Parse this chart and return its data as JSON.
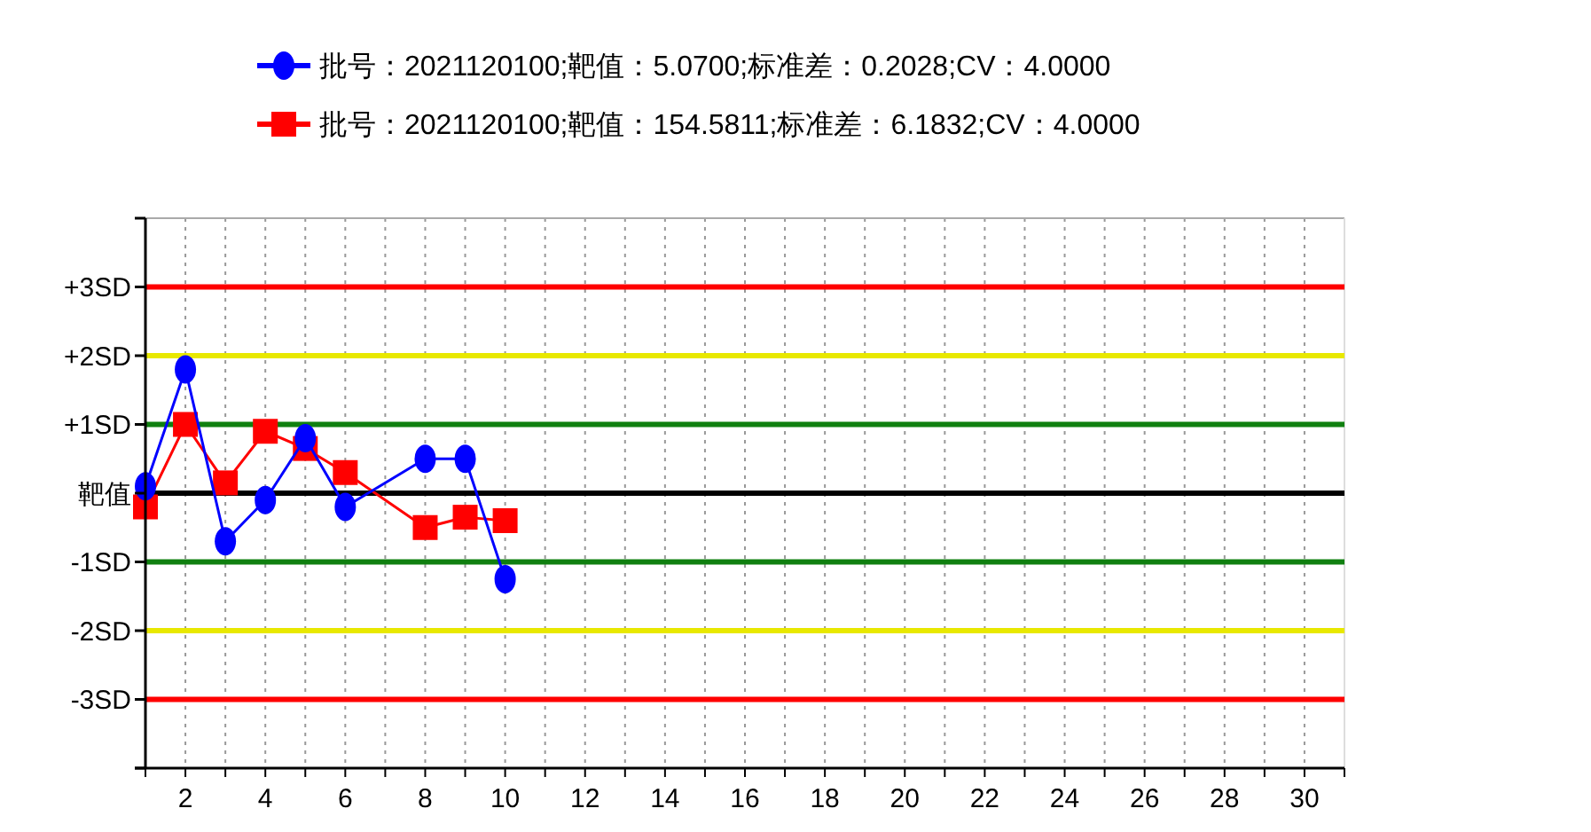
{
  "chart_data": {
    "type": "line",
    "legend": "top",
    "grid": "x",
    "xlim": [
      1,
      31
    ],
    "ylim": [
      -4,
      4
    ],
    "xticks": [
      {
        "value": 1,
        "label": null
      },
      2,
      {
        "value": 3,
        "label": null
      },
      4,
      {
        "value": 5,
        "label": null
      },
      6,
      {
        "value": 7,
        "label": null
      },
      8,
      {
        "value": 9,
        "label": null
      },
      10,
      {
        "value": 11,
        "label": null
      },
      12,
      {
        "value": 13,
        "label": null
      },
      14,
      {
        "value": 15,
        "label": null
      },
      16,
      {
        "value": 17,
        "label": null
      },
      18,
      {
        "value": 19,
        "label": null
      },
      20,
      {
        "value": 21,
        "label": null
      },
      22,
      {
        "value": 23,
        "label": null
      },
      24,
      {
        "value": 25,
        "label": null
      },
      26,
      {
        "value": 27,
        "label": null
      },
      28,
      {
        "value": 29,
        "label": null
      },
      30,
      {
        "value": 31,
        "label": null
      }
    ],
    "yticks": [
      {
        "value": 4,
        "label": null
      },
      {
        "value": 3,
        "label": "+3SD"
      },
      {
        "value": 2,
        "label": "+2SD"
      },
      {
        "value": 1,
        "label": "+1SD"
      },
      {
        "value": 0,
        "label": "靶值"
      },
      {
        "value": -1,
        "label": "-1SD"
      },
      {
        "value": -2,
        "label": "-2SD"
      },
      {
        "value": -3,
        "label": "-3SD"
      },
      {
        "value": -4,
        "label": null
      }
    ],
    "ref_lines": [
      {
        "axis": "y",
        "value": 3,
        "color": "#ff0000"
      },
      {
        "axis": "y",
        "value": 2,
        "color": "#e8e800"
      },
      {
        "axis": "y",
        "value": 1,
        "color": "#108010"
      },
      {
        "axis": "y",
        "value": 0,
        "color": "#000000"
      },
      {
        "axis": "y",
        "value": -1,
        "color": "#108010"
      },
      {
        "axis": "y",
        "value": -2,
        "color": "#e8e800"
      },
      {
        "axis": "y",
        "value": -3,
        "color": "#ff0000"
      }
    ],
    "series": [
      {
        "name": "批号：2021120100;靶值：5.0700;标准差：0.2028;CV：4.0000",
        "color": "#0000ff",
        "marker": "circle",
        "x": [
          1,
          2,
          3,
          4,
          5,
          6,
          8,
          9,
          10
        ],
        "values": [
          0.1,
          1.8,
          -0.7,
          -0.1,
          0.8,
          -0.2,
          0.5,
          0.5,
          -1.25
        ]
      },
      {
        "name": "批号：2021120100;靶值：154.5811;标准差：6.1832;CV：4.0000",
        "color": "#ff0000",
        "marker": "square",
        "x": [
          1,
          2,
          3,
          4,
          5,
          6,
          8,
          9,
          10
        ],
        "values": [
          -0.2,
          1.0,
          0.15,
          0.9,
          0.65,
          0.3,
          -0.5,
          -0.35,
          -0.4
        ]
      }
    ]
  }
}
